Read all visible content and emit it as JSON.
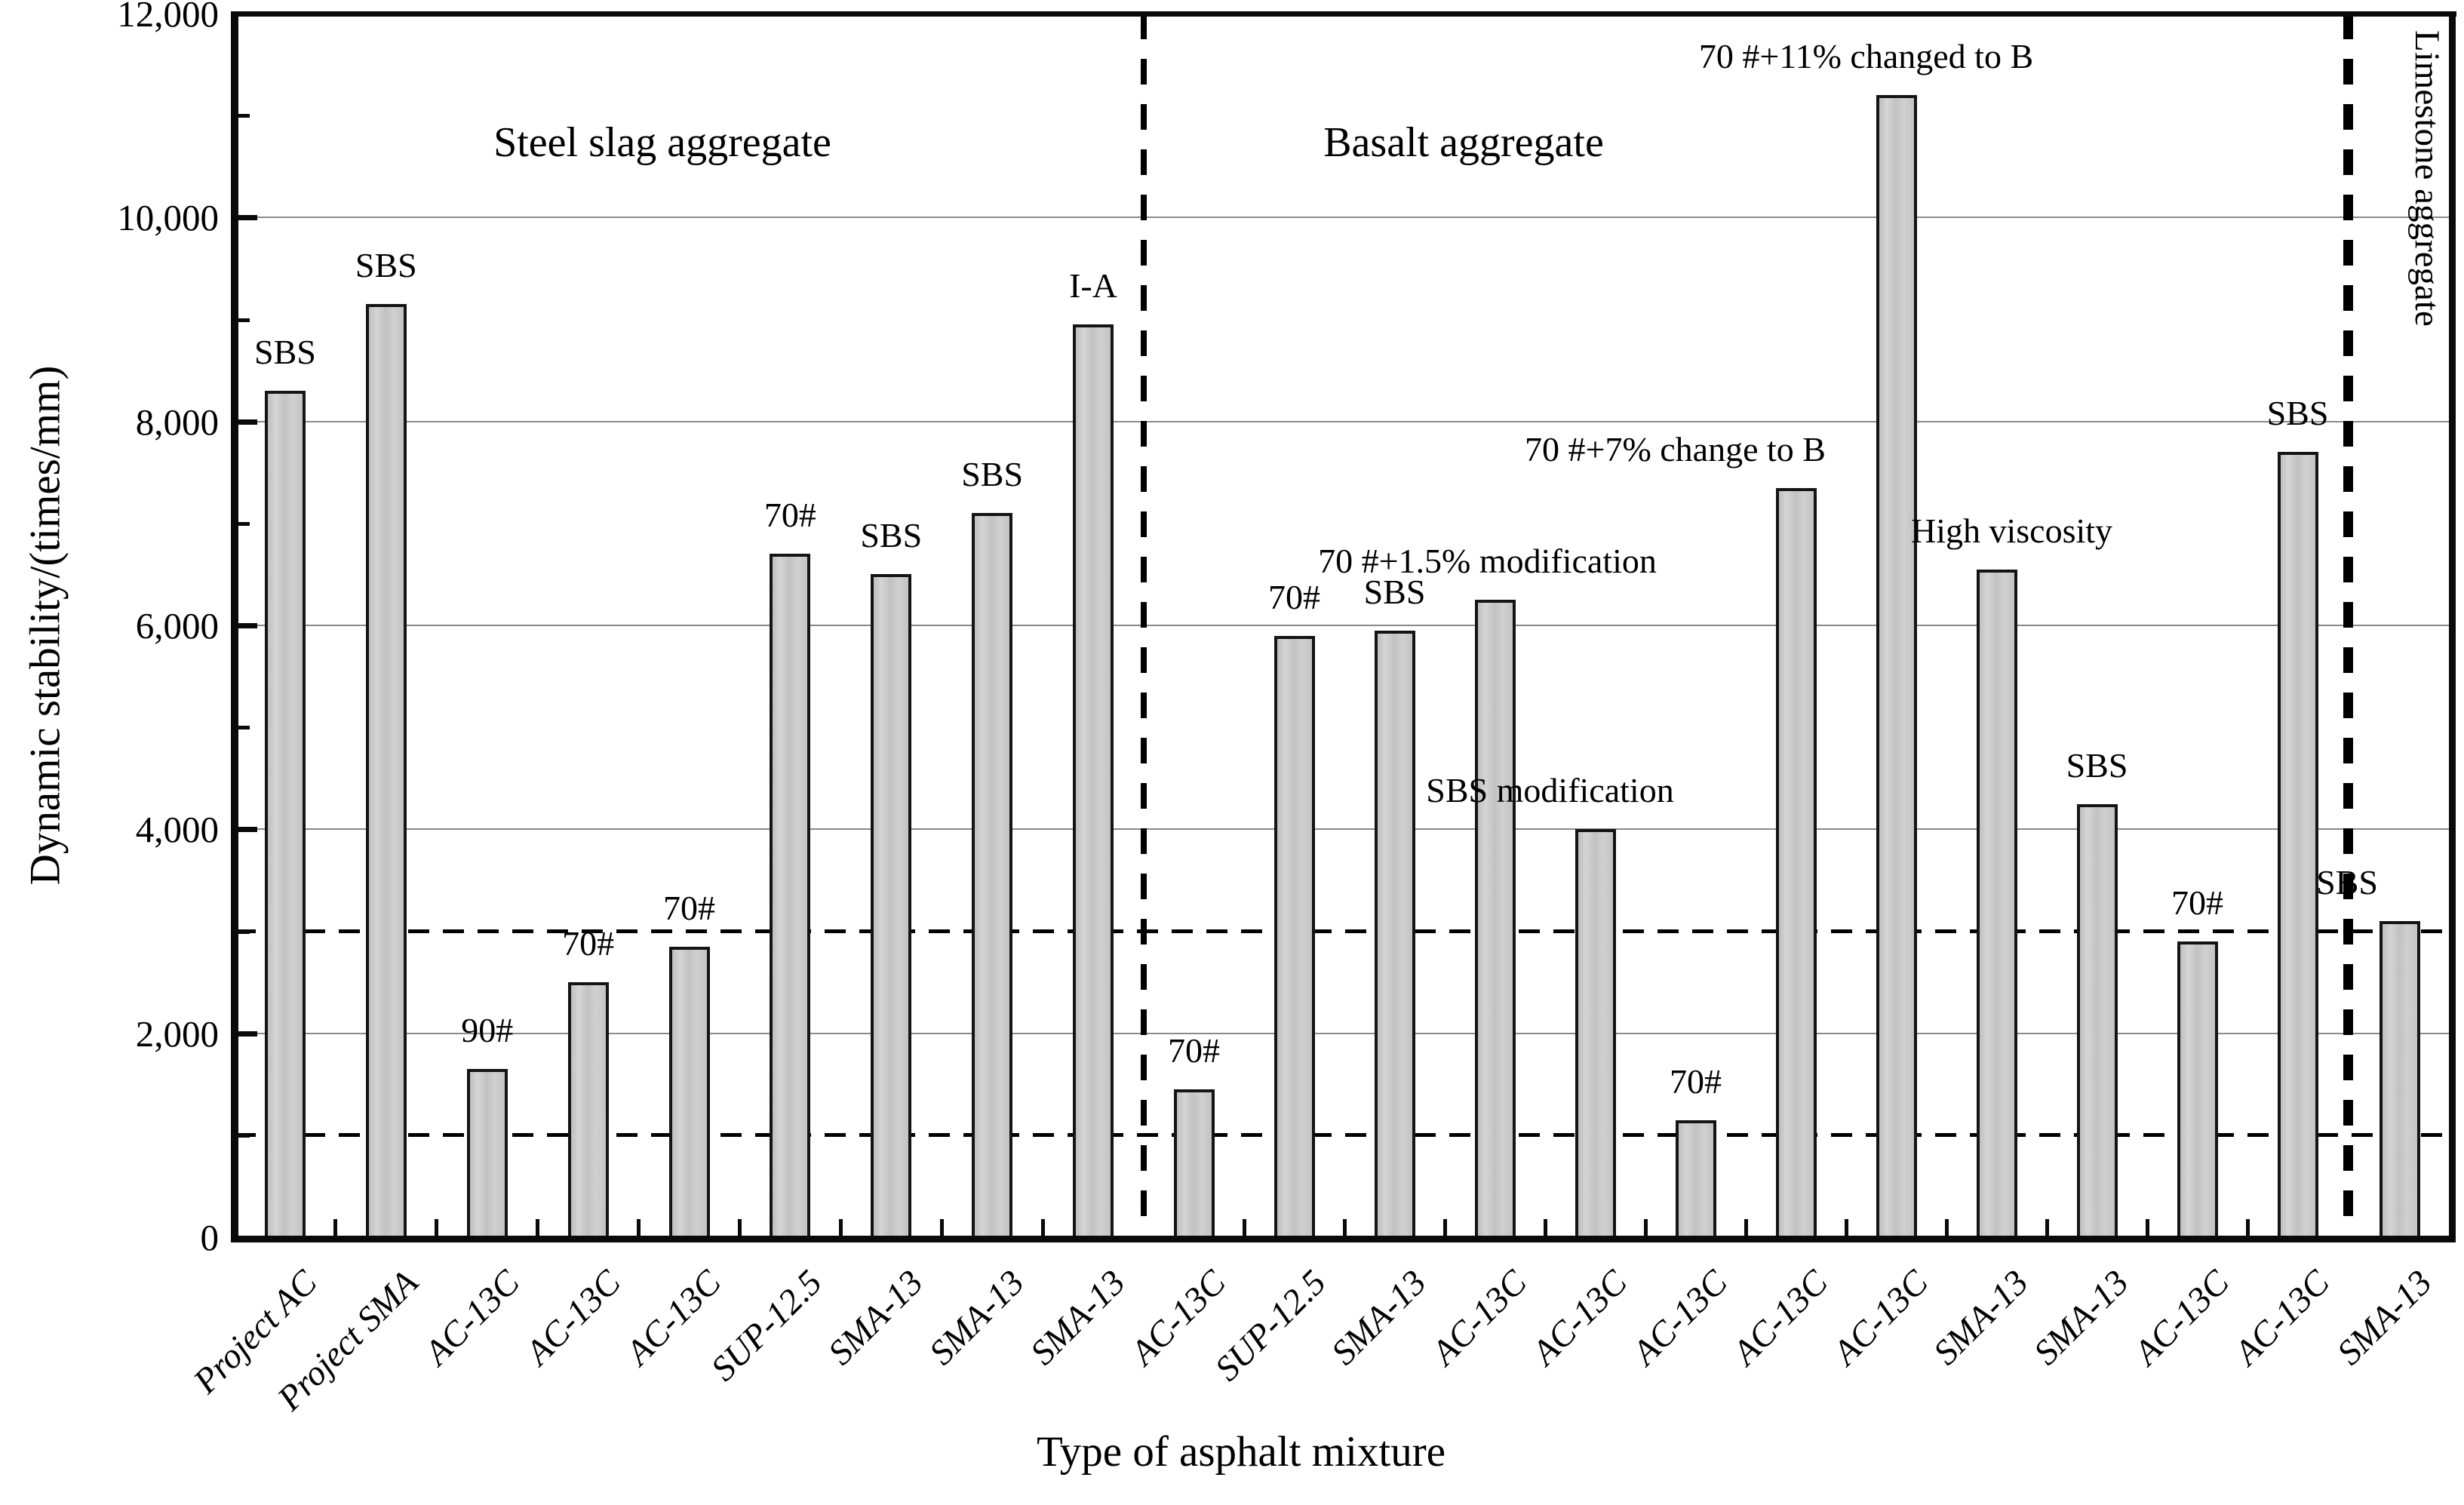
{
  "chart_data": {
    "type": "bar",
    "title": "",
    "xlabel": "Type of asphalt mixture",
    "ylabel": "Dynamic stability/(times/mm)",
    "ylim": [
      0,
      12000
    ],
    "yticks": [
      {
        "value": 0,
        "label": "0"
      },
      {
        "value": 2000,
        "label": "2,000"
      },
      {
        "value": 4000,
        "label": "4,000"
      },
      {
        "value": 6000,
        "label": "6,000"
      },
      {
        "value": 8000,
        "label": "8,000"
      },
      {
        "value": 10000,
        "label": "10,000"
      },
      {
        "value": 12000,
        "label": "12,000"
      }
    ],
    "minor_tick_step": 1000,
    "grid": "horizontal solid gray every 2000",
    "legend_position": "none",
    "threshold_dashed_lines": [
      1000,
      3000
    ],
    "colors": {
      "bar_fill": "#c9c9c9",
      "bar_border": "#141414",
      "gridline": "#8a8a8a",
      "axis": "#0a0a0a",
      "dashed": "#000000"
    },
    "sections": [
      {
        "name": "Steel slag aggregate",
        "bars": [
          {
            "category": "Project AC",
            "annotation": "SBS",
            "value": 8300
          },
          {
            "category": "Project SMA",
            "annotation": "SBS",
            "value": 9150
          },
          {
            "category": "AC-13C",
            "annotation": "90#",
            "value": 1650
          },
          {
            "category": "AC-13C",
            "annotation": "70#",
            "value": 2500
          },
          {
            "category": "AC-13C",
            "annotation": "70#",
            "value": 2850
          },
          {
            "category": "SUP-12.5",
            "annotation": "70#",
            "value": 6700
          },
          {
            "category": "SMA-13",
            "annotation": "SBS",
            "value": 6500
          },
          {
            "category": "SMA-13",
            "annotation": "SBS",
            "value": 7100
          },
          {
            "category": "SMA-13",
            "annotation": "I-A",
            "value": 8950
          }
        ]
      },
      {
        "name": "Basalt aggregate",
        "bars": [
          {
            "category": "AC-13C",
            "annotation": "70#",
            "value": 1450
          },
          {
            "category": "SUP-12.5",
            "annotation": "70#",
            "value": 5900
          },
          {
            "category": "SMA-13",
            "annotation": "SBS",
            "value": 5950
          },
          {
            "category": "AC-13C",
            "annotation": "70 #+1.5% modification",
            "value": 6250,
            "dx": -10
          },
          {
            "category": "AC-13C",
            "annotation": "SBS modification",
            "value": 4000,
            "dx": -60
          },
          {
            "category": "AC-13C",
            "annotation": "70#",
            "value": 1150
          },
          {
            "category": "AC-13C",
            "annotation": "70 #+7% change to B",
            "value": 7350,
            "dx": -160
          },
          {
            "category": "AC-13C",
            "annotation": "70 #+11% changed to B",
            "value": 11200,
            "dx": -40
          },
          {
            "category": "SMA-13",
            "annotation": "High viscosity",
            "value": 6550,
            "dx": 20
          },
          {
            "category": "SMA-13",
            "annotation": "SBS",
            "value": 4250
          },
          {
            "category": "AC-13C",
            "annotation": "70#",
            "value": 2900
          },
          {
            "category": "AC-13C",
            "annotation": "SBS",
            "value": 7700
          }
        ]
      },
      {
        "name": "Limestone aggregate",
        "vertical_title": true,
        "bars": [
          {
            "category": "SMA-13",
            "annotation": "SBS",
            "value": 3100,
            "dx": -70
          }
        ]
      }
    ]
  }
}
